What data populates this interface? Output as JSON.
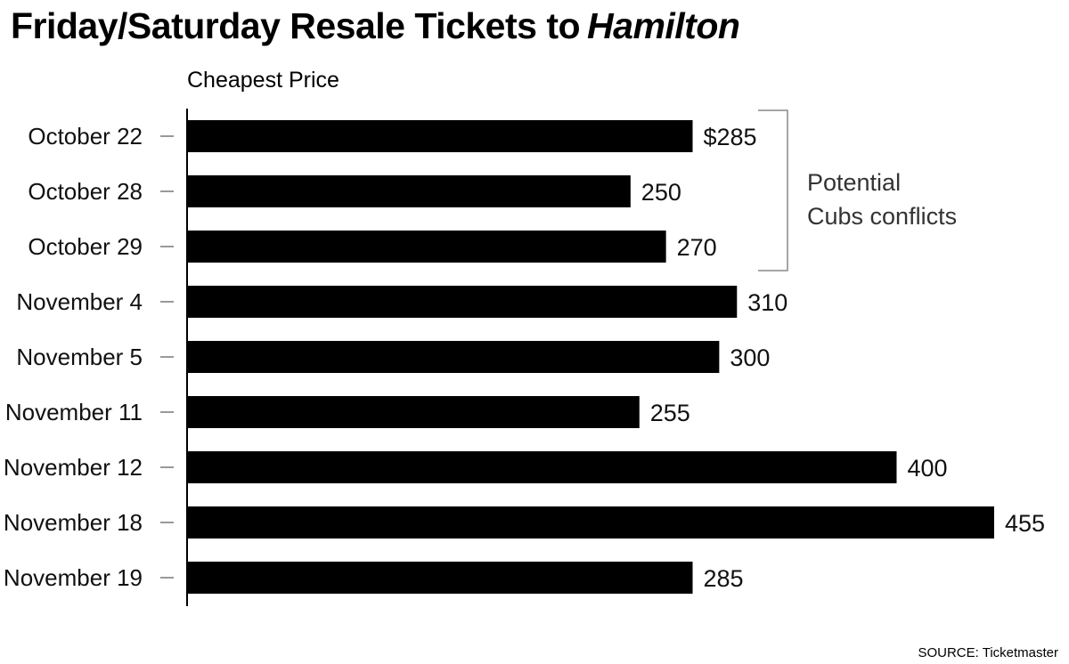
{
  "title": {
    "main": "Friday/Saturday Resale Tickets to",
    "emphasis": "Hamilton"
  },
  "source": "SOURCE: Ticketmaster",
  "chart_data": {
    "type": "bar",
    "orientation": "horizontal",
    "ylabel": "Cheapest Price",
    "categories": [
      "October 22",
      "October 28",
      "October 29",
      "November 4",
      "November 5",
      "November 11",
      "November 12",
      "November 18",
      "November 19"
    ],
    "values": [
      285,
      250,
      270,
      310,
      300,
      255,
      400,
      455,
      285
    ],
    "value_labels": [
      "$285",
      "250",
      "270",
      "310",
      "300",
      "255",
      "400",
      "455",
      "285"
    ],
    "xlim": [
      0,
      455
    ],
    "bar_color": "#000000",
    "grid": false,
    "annotation": {
      "lines": [
        "Potential",
        "Cubs conflicts"
      ],
      "categories": [
        "October 22",
        "October 28",
        "October 29"
      ]
    }
  }
}
